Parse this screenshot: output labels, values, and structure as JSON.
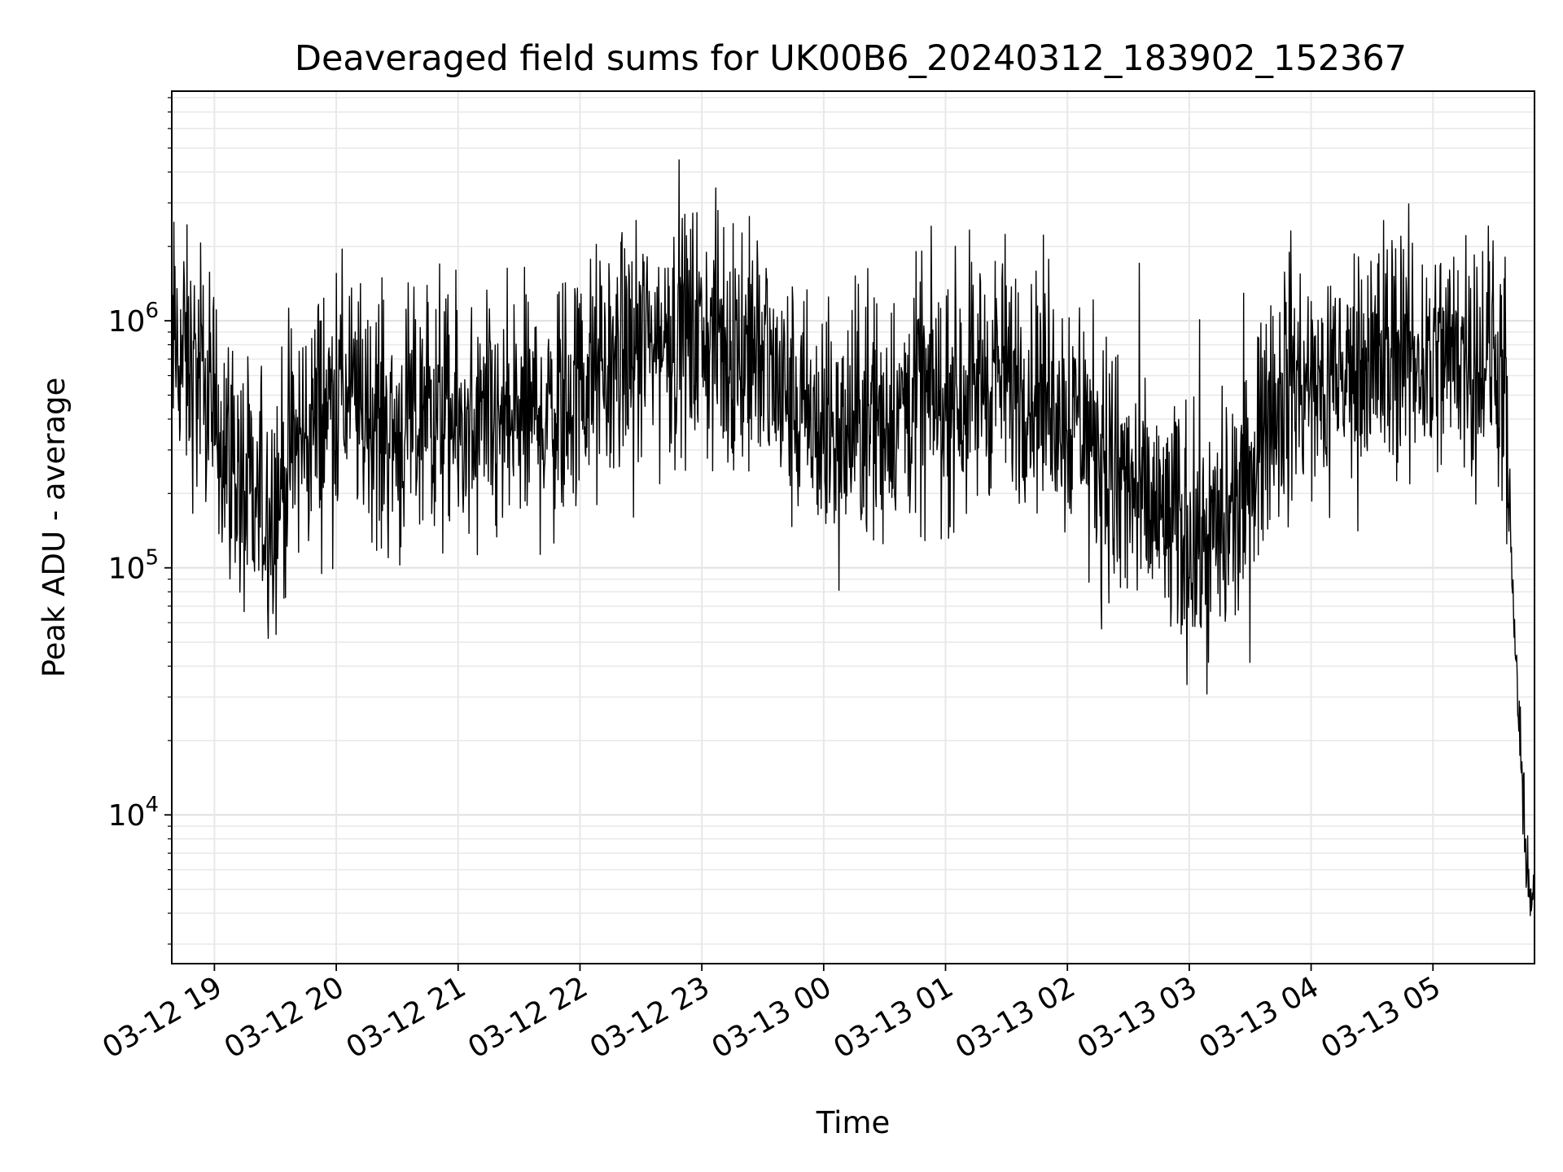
{
  "chart_data": {
    "type": "line",
    "title": "Deaveraged field sums for UK00B6_20240312_183902_152367",
    "xlabel": "Time",
    "ylabel": "Peak ADU - average",
    "yscale": "log",
    "ylim": [
      2500,
      8500000
    ],
    "xlim": [
      "2024-03-12 18:39",
      "2024-03-13 05:50"
    ],
    "grid": true,
    "line_color": "#000000",
    "x_ticks": [
      {
        "t": "2024-03-12 19:00",
        "label": "03-12 19"
      },
      {
        "t": "2024-03-12 20:00",
        "label": "03-12 20"
      },
      {
        "t": "2024-03-12 21:00",
        "label": "03-12 21"
      },
      {
        "t": "2024-03-12 22:00",
        "label": "03-12 22"
      },
      {
        "t": "2024-03-12 23:00",
        "label": "03-12 23"
      },
      {
        "t": "2024-03-13 00:00",
        "label": "03-13 00"
      },
      {
        "t": "2024-03-13 01:00",
        "label": "03-13 01"
      },
      {
        "t": "2024-03-13 02:00",
        "label": "03-13 02"
      },
      {
        "t": "2024-03-13 03:00",
        "label": "03-13 03"
      },
      {
        "t": "2024-03-13 04:00",
        "label": "03-13 04"
      },
      {
        "t": "2024-03-13 05:00",
        "label": "03-13 05"
      }
    ],
    "y_ticks": [
      {
        "value": 10000,
        "base": "10",
        "exp": "4"
      },
      {
        "value": 100000,
        "base": "10",
        "exp": "5"
      },
      {
        "value": 1000000,
        "base": "10",
        "exp": "6"
      }
    ],
    "series": [
      {
        "x": [
          "2024-03-12 18:39",
          "2024-03-12 18:45",
          "2024-03-12 18:50",
          "2024-03-12 18:55",
          "2024-03-12 19:00",
          "2024-03-12 19:05",
          "2024-03-12 19:10",
          "2024-03-12 19:15",
          "2024-03-12 19:20",
          "2024-03-12 19:25",
          "2024-03-12 19:30",
          "2024-03-12 19:35",
          "2024-03-12 19:40",
          "2024-03-12 19:45",
          "2024-03-12 19:50",
          "2024-03-12 19:55",
          "2024-03-12 20:00",
          "2024-03-12 20:10",
          "2024-03-12 20:20",
          "2024-03-12 20:30",
          "2024-03-12 20:40",
          "2024-03-12 20:50",
          "2024-03-12 21:00",
          "2024-03-12 21:10",
          "2024-03-12 21:20",
          "2024-03-12 21:30",
          "2024-03-12 21:40",
          "2024-03-12 21:50",
          "2024-03-12 22:00",
          "2024-03-12 22:10",
          "2024-03-12 22:20",
          "2024-03-12 22:30",
          "2024-03-12 22:40",
          "2024-03-12 22:50",
          "2024-03-12 23:00",
          "2024-03-12 23:10",
          "2024-03-12 23:20",
          "2024-03-12 23:30",
          "2024-03-12 23:40",
          "2024-03-12 23:50",
          "2024-03-13 00:00",
          "2024-03-13 00:10",
          "2024-03-13 00:20",
          "2024-03-13 00:30",
          "2024-03-13 00:40",
          "2024-03-13 00:50",
          "2024-03-13 01:00",
          "2024-03-13 01:10",
          "2024-03-13 01:20",
          "2024-03-13 01:30",
          "2024-03-13 01:40",
          "2024-03-13 01:50",
          "2024-03-13 02:00",
          "2024-03-13 02:10",
          "2024-03-13 02:20",
          "2024-03-13 02:30",
          "2024-03-13 02:40",
          "2024-03-13 02:50",
          "2024-03-13 03:00",
          "2024-03-13 03:10",
          "2024-03-13 03:20",
          "2024-03-13 03:30",
          "2024-03-13 03:40",
          "2024-03-13 03:50",
          "2024-03-13 04:00",
          "2024-03-13 04:10",
          "2024-03-13 04:20",
          "2024-03-13 04:30",
          "2024-03-13 04:40",
          "2024-03-13 04:50",
          "2024-03-13 05:00",
          "2024-03-13 05:10",
          "2024-03-13 05:20",
          "2024-03-13 05:30",
          "2024-03-13 05:35",
          "2024-03-13 05:38",
          "2024-03-13 05:41",
          "2024-03-13 05:44",
          "2024-03-13 05:47",
          "2024-03-13 05:50"
        ],
        "y": [
          800000,
          700000,
          600000,
          500000,
          400000,
          350000,
          250000,
          180000,
          170000,
          180000,
          190000,
          250000,
          300000,
          350000,
          400000,
          450000,
          500000,
          450000,
          400000,
          350000,
          380000,
          420000,
          350000,
          330000,
          350000,
          400000,
          420000,
          450000,
          550000,
          600000,
          700000,
          800000,
          850000,
          900000,
          850000,
          800000,
          800000,
          700000,
          500000,
          400000,
          350000,
          350000,
          400000,
          420000,
          450000,
          480000,
          500000,
          550000,
          600000,
          600000,
          550000,
          500000,
          450000,
          350000,
          250000,
          200000,
          170000,
          150000,
          130000,
          130000,
          150000,
          200000,
          500000,
          550000,
          500000,
          550000,
          600000,
          700000,
          750000,
          700000,
          700000,
          750000,
          750000,
          700000,
          600000,
          120000,
          40000,
          12000,
          5000,
          4000
        ]
      }
    ]
  }
}
